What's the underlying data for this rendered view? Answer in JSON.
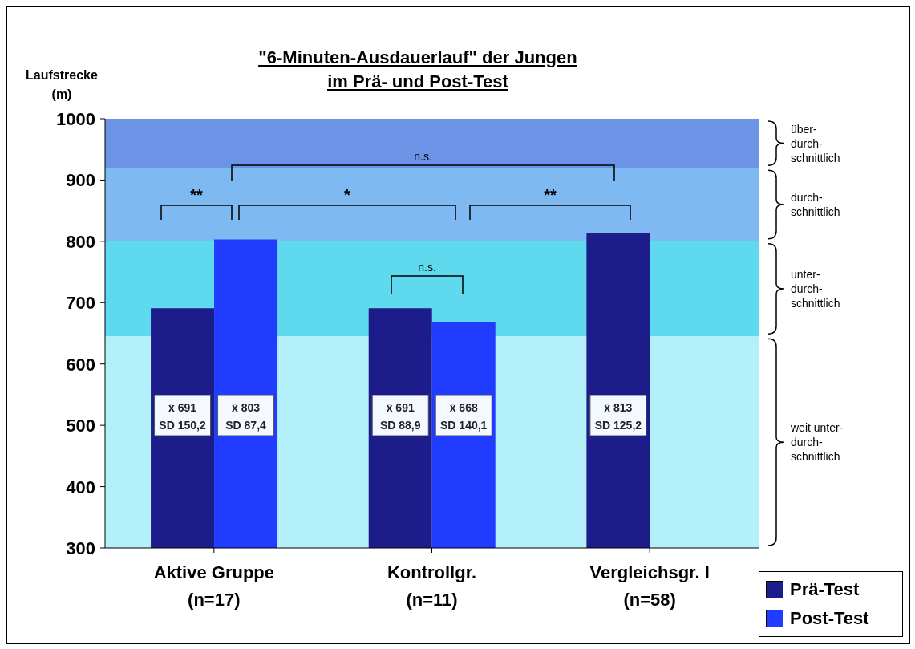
{
  "chart_data": {
    "type": "bar",
    "title": "\"6-Minuten-Ausdauerlauf\" der Jungen\nim Prä- und Post-Test",
    "ylabel": "Laufstrecke\n(m)",
    "categories": [
      "Aktive Gruppe\n(n=17)",
      "Kontrollgr.\n(n=11)",
      "Vergleichsgr. I\n(n=58)"
    ],
    "series": [
      {
        "name": "Prä-Test",
        "color": "#1c1c8a",
        "values": [
          691,
          691,
          813
        ],
        "value_labels": [
          "x̄ 691\nSD 150,2",
          "x̄ 691\nSD 88,9",
          "x̄ 813\nSD 125,2"
        ]
      },
      {
        "name": "Post-Test",
        "color": "#1f3cff",
        "values": [
          803,
          668,
          null
        ],
        "value_labels": [
          "x̄ 803\nSD 87,4",
          "x̄ 668\nSD 140,1",
          null
        ]
      }
    ],
    "ylim": [
      300,
      1000
    ],
    "yticks": [
      300,
      400,
      500,
      600,
      700,
      800,
      900,
      1000
    ],
    "bands": [
      {
        "axis": "y",
        "from": 300,
        "to": 645,
        "label": "weit unter-\ndurch-\nschnittlich",
        "color": "#b4f0fa"
      },
      {
        "axis": "y",
        "from": 645,
        "to": 800,
        "label": "unter-\ndurch-\nschnittlich",
        "color": "#5fd9ee"
      },
      {
        "axis": "y",
        "from": 800,
        "to": 920,
        "label": "durch-\nschnittlich",
        "color": "#7fb9f2"
      },
      {
        "axis": "y",
        "from": 920,
        "to": 1000,
        "label": "über-\ndurch-\nschnittlich",
        "color": "#6c94e6"
      }
    ],
    "annotations": [
      "n.s.",
      "**",
      "*",
      "**",
      "n.s."
    ],
    "legend": "bottom right"
  }
}
